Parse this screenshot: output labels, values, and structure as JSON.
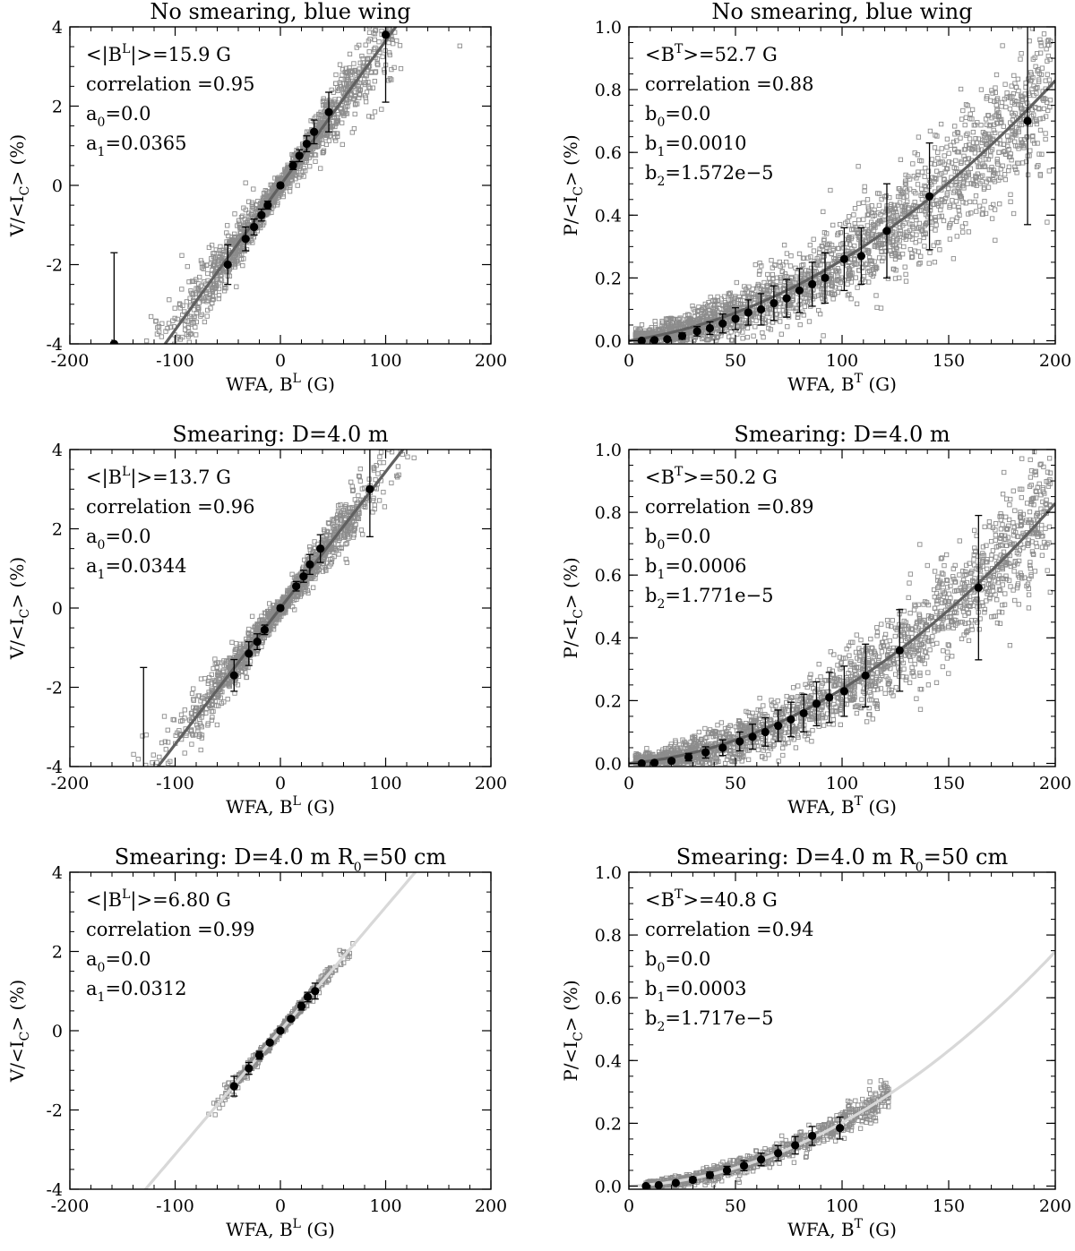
{
  "figure": {
    "panel_order": [
      "No smearing, blue wing",
      "Smearing: D=4.0 m",
      "Smearing: D=4.0 m R0=50 cm"
    ]
  },
  "chart_data": [
    {
      "type": "scatter",
      "quantity": "longitudinal",
      "title": "No smearing,  blue wing",
      "title_main": "No smearing,  blue wing",
      "title_sub": "",
      "title_tail": "",
      "xlabel": "WFA, B",
      "xlabel_sup": "L",
      "xlabel_unit": " (G)",
      "ylabel": "V/<I",
      "ylabel_sub": "C",
      "ylabel_tail": "> (%)",
      "xlim": [
        -200,
        200
      ],
      "ylim": [
        -4,
        4
      ],
      "xticks": [
        -200,
        -100,
        0,
        100,
        200
      ],
      "yticks": [
        -4,
        -2,
        0,
        2,
        4
      ],
      "ann_mean_pre": "<|B",
      "ann_mean_sup": "L",
      "ann_mean_post": "|>=15.9 G",
      "ann_corr": "correlation =0.95",
      "coef_a_sub": "0",
      "coef_a_val": "=0.0",
      "coef_b_sub": "1",
      "coef_b_val": "=0.0365",
      "coef_c_sub": "",
      "coef_c_val": "",
      "coef_letter": "a",
      "fit": {
        "c0": 0.0,
        "c1": 0.0365,
        "c2": 0
      },
      "fit_color": "#606060",
      "scatter": {
        "n": 1500,
        "xmin": -190,
        "xmax": 185,
        "spread": 0.35
      },
      "binned": [
        {
          "x": -158,
          "y": -4.0,
          "err": 2.3
        },
        {
          "x": -50,
          "y": -2.0,
          "err": 0.5
        },
        {
          "x": -33,
          "y": -1.35,
          "err": 0.3
        },
        {
          "x": -25,
          "y": -1.05,
          "err": 0.2
        },
        {
          "x": -18,
          "y": -0.75,
          "err": 0.15
        },
        {
          "x": -12,
          "y": -0.5,
          "err": 0.1
        },
        {
          "x": 0,
          "y": 0.0,
          "err": 0.05
        },
        {
          "x": 12,
          "y": 0.5,
          "err": 0.1
        },
        {
          "x": 18,
          "y": 0.75,
          "err": 0.15
        },
        {
          "x": 25,
          "y": 1.05,
          "err": 0.2
        },
        {
          "x": 32,
          "y": 1.35,
          "err": 0.3
        },
        {
          "x": 46,
          "y": 1.85,
          "err": 0.5
        },
        {
          "x": 100,
          "y": 3.8,
          "err": 1.7
        }
      ]
    },
    {
      "type": "scatter",
      "quantity": "transverse",
      "title": "No smearing,  blue wing",
      "title_main": "No smearing,  blue wing",
      "title_sub": "",
      "title_tail": "",
      "xlabel": "WFA, B",
      "xlabel_sup": "T",
      "xlabel_unit": " (G)",
      "ylabel": "P/<I",
      "ylabel_sub": "C",
      "ylabel_tail": "> (%)",
      "xlim": [
        0,
        200
      ],
      "ylim": [
        -0.01,
        1.0
      ],
      "xticks": [
        0,
        50,
        100,
        150,
        200
      ],
      "yticks": [
        0.0,
        0.2,
        0.4,
        0.6,
        0.8,
        1.0
      ],
      "ann_mean_pre": "<B",
      "ann_mean_sup": "T",
      "ann_mean_post": ">=52.7 G",
      "ann_corr": "correlation =0.88",
      "coef_a_sub": "0",
      "coef_a_val": "=0.0",
      "coef_b_sub": "1",
      "coef_b_val": "=0.0010",
      "coef_c_sub": "2",
      "coef_c_val": "=1.572e−5",
      "coef_letter": "b",
      "fit": {
        "c0": 0.0,
        "c1": 0.001,
        "c2": 1.572e-05
      },
      "fit_color": "#606060",
      "scatter": {
        "n": 2200,
        "xmin": 3,
        "xmax": 198,
        "spread": 0.09
      },
      "binned": [
        {
          "x": 6,
          "y": 0.0,
          "err": 0.0
        },
        {
          "x": 12,
          "y": 0.002,
          "err": 0.003
        },
        {
          "x": 18,
          "y": 0.005,
          "err": 0.005
        },
        {
          "x": 25,
          "y": 0.015,
          "err": 0.01
        },
        {
          "x": 32,
          "y": 0.03,
          "err": 0.015
        },
        {
          "x": 38,
          "y": 0.04,
          "err": 0.02
        },
        {
          "x": 44,
          "y": 0.055,
          "err": 0.03
        },
        {
          "x": 50,
          "y": 0.07,
          "err": 0.035
        },
        {
          "x": 56,
          "y": 0.09,
          "err": 0.04
        },
        {
          "x": 62,
          "y": 0.1,
          "err": 0.05
        },
        {
          "x": 68,
          "y": 0.12,
          "err": 0.055
        },
        {
          "x": 74,
          "y": 0.135,
          "err": 0.06
        },
        {
          "x": 80,
          "y": 0.16,
          "err": 0.07
        },
        {
          "x": 86,
          "y": 0.18,
          "err": 0.07
        },
        {
          "x": 92,
          "y": 0.2,
          "err": 0.08
        },
        {
          "x": 101,
          "y": 0.26,
          "err": 0.1
        },
        {
          "x": 109,
          "y": 0.27,
          "err": 0.09
        },
        {
          "x": 121,
          "y": 0.35,
          "err": 0.15
        },
        {
          "x": 141,
          "y": 0.46,
          "err": 0.17
        },
        {
          "x": 187,
          "y": 0.7,
          "err": 0.33
        }
      ]
    },
    {
      "type": "scatter",
      "quantity": "longitudinal",
      "title": "Smearing: D=4.0 m",
      "title_main": "Smearing: D=4.0 m",
      "title_sub": "",
      "title_tail": "",
      "xlabel": "WFA, B",
      "xlabel_sup": "L",
      "xlabel_unit": " (G)",
      "ylabel": "V/<I",
      "ylabel_sub": "C",
      "ylabel_tail": "> (%)",
      "xlim": [
        -200,
        200
      ],
      "ylim": [
        -4,
        4
      ],
      "xticks": [
        -200,
        -100,
        0,
        100,
        200
      ],
      "yticks": [
        -4,
        -2,
        0,
        2,
        4
      ],
      "ann_mean_pre": "<|B",
      "ann_mean_sup": "L",
      "ann_mean_post": "|>=13.7 G",
      "ann_corr": "correlation =0.96",
      "coef_a_sub": "0",
      "coef_a_val": "=0.0",
      "coef_b_sub": "1",
      "coef_b_val": "=0.0344",
      "coef_c_sub": "",
      "coef_c_val": "",
      "coef_letter": "a",
      "fit": {
        "c0": 0.0,
        "c1": 0.0344,
        "c2": 0
      },
      "fit_color": "#606060",
      "scatter": {
        "n": 1400,
        "xmin": -155,
        "xmax": 170,
        "spread": 0.3
      },
      "binned": [
        {
          "x": -130,
          "y": -4.1,
          "err": 2.6
        },
        {
          "x": -44,
          "y": -1.7,
          "err": 0.4
        },
        {
          "x": -30,
          "y": -1.15,
          "err": 0.3
        },
        {
          "x": -22,
          "y": -0.85,
          "err": 0.2
        },
        {
          "x": -15,
          "y": -0.55,
          "err": 0.12
        },
        {
          "x": 0,
          "y": 0.0,
          "err": 0.05
        },
        {
          "x": 15,
          "y": 0.55,
          "err": 0.12
        },
        {
          "x": 22,
          "y": 0.8,
          "err": 0.15
        },
        {
          "x": 28,
          "y": 1.1,
          "err": 0.25
        },
        {
          "x": 38,
          "y": 1.5,
          "err": 0.35
        },
        {
          "x": 85,
          "y": 3.0,
          "err": 1.2
        }
      ]
    },
    {
      "type": "scatter",
      "quantity": "transverse",
      "title": "Smearing: D=4.0 m",
      "title_main": "Smearing: D=4.0 m",
      "title_sub": "",
      "title_tail": "",
      "xlabel": "WFA, B",
      "xlabel_sup": "T",
      "xlabel_unit": " (G)",
      "ylabel": "P/<I",
      "ylabel_sub": "C",
      "ylabel_tail": "> (%)",
      "xlim": [
        0,
        200
      ],
      "ylim": [
        -0.01,
        1.0
      ],
      "xticks": [
        0,
        50,
        100,
        150,
        200
      ],
      "yticks": [
        0.0,
        0.2,
        0.4,
        0.6,
        0.8,
        1.0
      ],
      "ann_mean_pre": "<B",
      "ann_mean_sup": "T",
      "ann_mean_post": ">=50.2 G",
      "ann_corr": "correlation =0.89",
      "coef_a_sub": "0",
      "coef_a_val": "=0.0",
      "coef_b_sub": "1",
      "coef_b_val": "=0.0006",
      "coef_c_sub": "2",
      "coef_c_val": "=1.771e−5",
      "coef_letter": "b",
      "fit": {
        "c0": 0.0,
        "c1": 0.0006,
        "c2": 1.771e-05
      },
      "fit_color": "#606060",
      "scatter": {
        "n": 2000,
        "xmin": 3,
        "xmax": 198,
        "spread": 0.08
      },
      "binned": [
        {
          "x": 6,
          "y": 0.0,
          "err": 0.0
        },
        {
          "x": 12,
          "y": 0.002,
          "err": 0.003
        },
        {
          "x": 20,
          "y": 0.008,
          "err": 0.006
        },
        {
          "x": 28,
          "y": 0.02,
          "err": 0.012
        },
        {
          "x": 36,
          "y": 0.035,
          "err": 0.018
        },
        {
          "x": 44,
          "y": 0.05,
          "err": 0.025
        },
        {
          "x": 52,
          "y": 0.07,
          "err": 0.03
        },
        {
          "x": 58,
          "y": 0.085,
          "err": 0.04
        },
        {
          "x": 64,
          "y": 0.1,
          "err": 0.045
        },
        {
          "x": 70,
          "y": 0.12,
          "err": 0.05
        },
        {
          "x": 76,
          "y": 0.14,
          "err": 0.055
        },
        {
          "x": 82,
          "y": 0.16,
          "err": 0.06
        },
        {
          "x": 88,
          "y": 0.19,
          "err": 0.07
        },
        {
          "x": 94,
          "y": 0.21,
          "err": 0.08
        },
        {
          "x": 101,
          "y": 0.23,
          "err": 0.08
        },
        {
          "x": 111,
          "y": 0.28,
          "err": 0.1
        },
        {
          "x": 127,
          "y": 0.36,
          "err": 0.13
        },
        {
          "x": 164,
          "y": 0.56,
          "err": 0.23
        }
      ]
    },
    {
      "type": "scatter",
      "quantity": "longitudinal",
      "title": "Smearing: D=4.0 m R0=50 cm",
      "title_main": "Smearing: D=4.0 m R",
      "title_sub": "0",
      "title_tail": "=50 cm",
      "xlabel": "WFA, B",
      "xlabel_sup": "L",
      "xlabel_unit": " (G)",
      "ylabel": "V/<I",
      "ylabel_sub": "C",
      "ylabel_tail": "> (%)",
      "xlim": [
        -200,
        200
      ],
      "ylim": [
        -4,
        4
      ],
      "xticks": [
        -200,
        -100,
        0,
        100,
        200
      ],
      "yticks": [
        -4,
        -2,
        0,
        2,
        4
      ],
      "ann_mean_pre": "<|B",
      "ann_mean_sup": "L",
      "ann_mean_post": "|>=6.80 G",
      "ann_corr": "correlation =0.99",
      "coef_a_sub": "0",
      "coef_a_val": "=0.0",
      "coef_b_sub": "1",
      "coef_b_val": "=0.0312",
      "coef_c_sub": "",
      "coef_c_val": "",
      "coef_letter": "a",
      "fit": {
        "c0": 0.0,
        "c1": 0.0312,
        "c2": 0
      },
      "fit_color": "#d8d8d8",
      "scatter": {
        "n": 700,
        "xmin": -75,
        "xmax": 78,
        "spread": 0.12
      },
      "binned": [
        {
          "x": -44,
          "y": -1.4,
          "err": 0.25
        },
        {
          "x": -30,
          "y": -0.95,
          "err": 0.15
        },
        {
          "x": -20,
          "y": -0.62,
          "err": 0.1
        },
        {
          "x": -10,
          "y": -0.3,
          "err": 0.05
        },
        {
          "x": 0,
          "y": 0.0,
          "err": 0.03
        },
        {
          "x": 10,
          "y": 0.3,
          "err": 0.05
        },
        {
          "x": 20,
          "y": 0.62,
          "err": 0.1
        },
        {
          "x": 26,
          "y": 0.85,
          "err": 0.12
        },
        {
          "x": 33,
          "y": 1.0,
          "err": 0.2
        }
      ]
    },
    {
      "type": "scatter",
      "quantity": "transverse",
      "title": "Smearing: D=4.0 m R0=50 cm",
      "title_main": "Smearing: D=4.0 m R",
      "title_sub": "0",
      "title_tail": "=50 cm",
      "xlabel": "WFA, B",
      "xlabel_sup": "T",
      "xlabel_unit": " (G)",
      "ylabel": "P/<I",
      "ylabel_sub": "C",
      "ylabel_tail": "> (%)",
      "xlim": [
        0,
        200
      ],
      "ylim": [
        -0.01,
        1.0
      ],
      "xticks": [
        0,
        50,
        100,
        150,
        200
      ],
      "yticks": [
        0.0,
        0.2,
        0.4,
        0.6,
        0.8,
        1.0
      ],
      "ann_mean_pre": "<B",
      "ann_mean_sup": "T",
      "ann_mean_post": ">=40.8 G",
      "ann_corr": "correlation =0.94",
      "coef_a_sub": "0",
      "coef_a_val": "=0.0",
      "coef_b_sub": "1",
      "coef_b_val": "=0.0003",
      "coef_c_sub": "2",
      "coef_c_val": "=1.717e−5",
      "coef_letter": "b",
      "fit": {
        "c0": 0.0,
        "c1": 0.0003,
        "c2": 1.717e-05
      },
      "fit_color": "#d8d8d8",
      "scatter": {
        "n": 900,
        "xmin": 8,
        "xmax": 122,
        "spread": 0.03
      },
      "binned": [
        {
          "x": 8,
          "y": 0.0,
          "err": 0.0
        },
        {
          "x": 14,
          "y": 0.003,
          "err": 0.003
        },
        {
          "x": 22,
          "y": 0.01,
          "err": 0.005
        },
        {
          "x": 30,
          "y": 0.02,
          "err": 0.008
        },
        {
          "x": 38,
          "y": 0.035,
          "err": 0.01
        },
        {
          "x": 46,
          "y": 0.05,
          "err": 0.013
        },
        {
          "x": 54,
          "y": 0.065,
          "err": 0.016
        },
        {
          "x": 62,
          "y": 0.085,
          "err": 0.02
        },
        {
          "x": 70,
          "y": 0.105,
          "err": 0.024
        },
        {
          "x": 78,
          "y": 0.13,
          "err": 0.028
        },
        {
          "x": 86,
          "y": 0.16,
          "err": 0.03
        },
        {
          "x": 99,
          "y": 0.185,
          "err": 0.035
        }
      ]
    }
  ]
}
